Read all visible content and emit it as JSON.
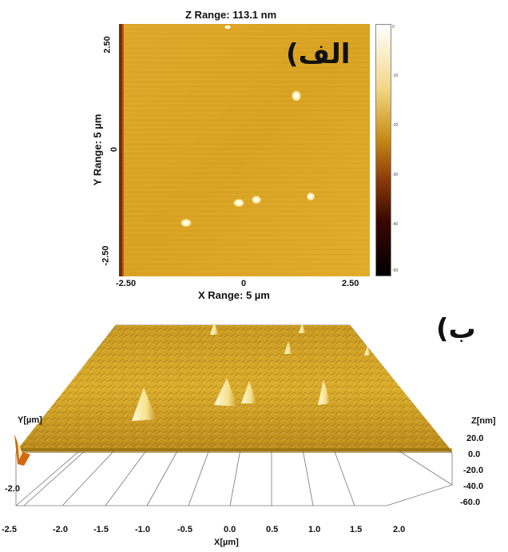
{
  "top_panel": {
    "title": "Z Range:  113.1 nm",
    "panel_label": "الف)",
    "y_axis_label": "Y Range: 5 µm",
    "x_axis_label": "X Range: 5 µm",
    "x_ticks": [
      "-2.50",
      "0",
      "2.50"
    ],
    "y_ticks": [
      "2.50",
      "0",
      "-2.50"
    ],
    "colorbar_ticks": [
      "0",
      "-10",
      "-20",
      "-30",
      "-40",
      "-50"
    ]
  },
  "bottom_panel": {
    "panel_label": "ب)",
    "x_axis_label": "X[µm]",
    "y_axis_label": "Y[µm]",
    "z_axis_label": "Z[nm]",
    "x_ticks": [
      "-2.5",
      "-2.0",
      "-1.5",
      "-1.0",
      "-0.5",
      "0.0",
      "0.5",
      "1.0",
      "1.5",
      "2.0"
    ],
    "y_tick": "-2.0",
    "z_ticks": [
      "20.0",
      "0.0",
      "-20.0",
      "-40.0",
      "-60.0"
    ]
  },
  "colors": {
    "surface": "#d9a520",
    "surface_dark": "#b7861a",
    "peak": "#fff7c8",
    "colorbar_top": "#ffffff",
    "colorbar_mid": "#c98d18",
    "colorbar_low": "#8a1a06",
    "colorbar_bottom": "#000000"
  }
}
